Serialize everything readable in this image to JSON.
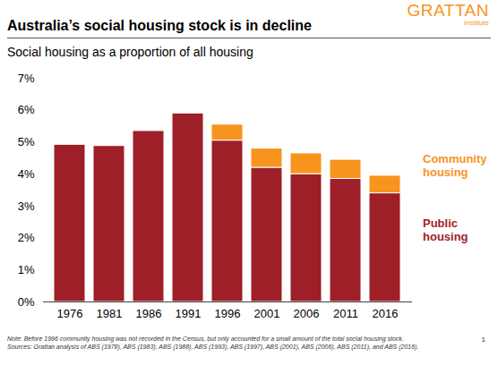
{
  "chart_data": {
    "type": "bar",
    "title": "Australia’s social housing stock is in decline",
    "subtitle": "Social housing as a proportion of all housing",
    "categories": [
      "1976",
      "1981",
      "1986",
      "1991",
      "1996",
      "2001",
      "2006",
      "2011",
      "2016"
    ],
    "series": [
      {
        "name": "Public housing",
        "color": "#9e1f27",
        "values": [
          4.92,
          4.88,
          5.35,
          5.9,
          5.05,
          4.2,
          4.0,
          3.85,
          3.4
        ]
      },
      {
        "name": "Community housing",
        "color": "#f7941d",
        "values": [
          null,
          null,
          null,
          null,
          0.5,
          0.6,
          0.65,
          0.6,
          0.55
        ]
      }
    ],
    "stacked": true,
    "ylim": [
      0,
      7
    ],
    "yticks": [
      {
        "value": 0,
        "label": "0%"
      },
      {
        "value": 1,
        "label": "1%"
      },
      {
        "value": 2,
        "label": "2%"
      },
      {
        "value": 3,
        "label": "3%"
      },
      {
        "value": 4,
        "label": "4%"
      },
      {
        "value": 5,
        "label": "5%"
      },
      {
        "value": 6,
        "label": "6%"
      },
      {
        "value": 7,
        "label": "7%"
      }
    ],
    "grid": false,
    "legend": "right",
    "logo": "GRATTAN",
    "logo_subtitle": "Institute",
    "note": "Note: Before 1996 community housing was not recorded in the Census, but only accounted for a small amount of the total social housing stock.",
    "source": "Sources: Grattan analysis of ABS (1978), ABS (1983), ABS (1988), ABS (1993), ABS (1997), ABS (2001), ABS (2006), ABS (2011), and ABS (2016).",
    "page": "1"
  }
}
